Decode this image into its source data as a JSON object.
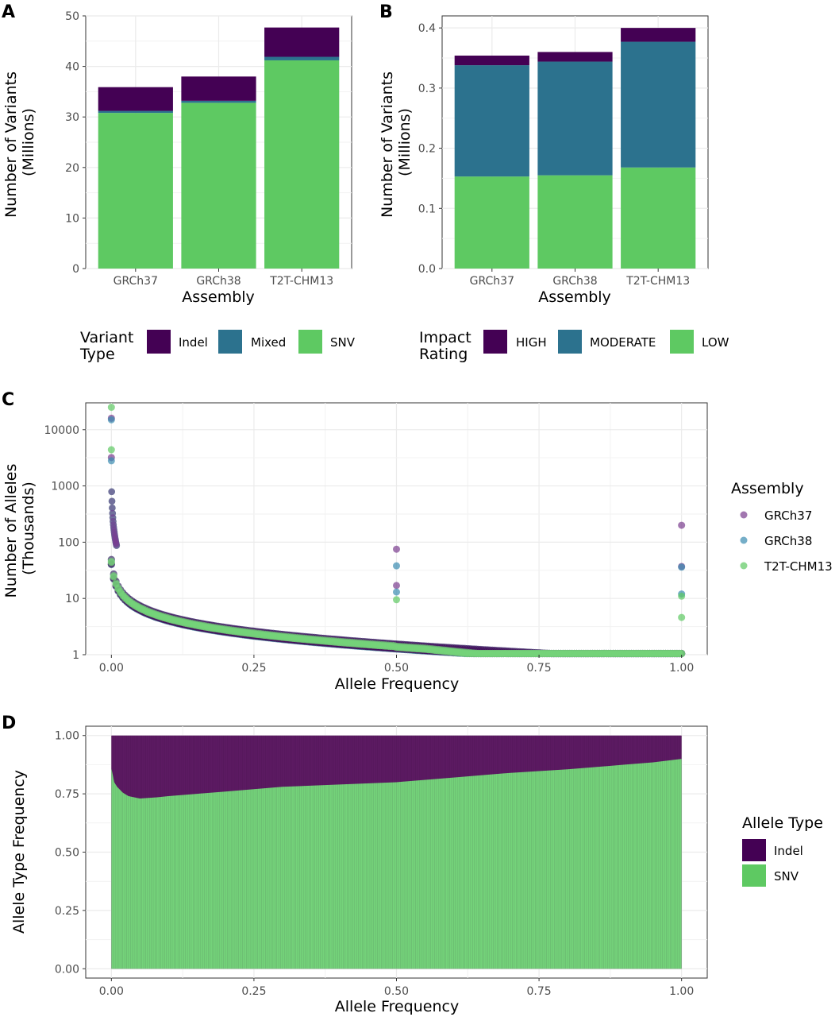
{
  "chart_data": [
    {
      "panel": "A",
      "type": "bar",
      "stacked": true,
      "categories": [
        "GRCh37",
        "GRCh38",
        "T2T-CHM13"
      ],
      "series": [
        {
          "name": "SNV",
          "values": [
            30.8,
            32.8,
            41.2
          ],
          "color": "#5ec962"
        },
        {
          "name": "Mixed",
          "values": [
            0.4,
            0.4,
            0.7
          ],
          "color": "#2c728e"
        },
        {
          "name": "Indel",
          "values": [
            4.7,
            4.8,
            5.8
          ],
          "color": "#440154"
        }
      ],
      "xlabel": "Assembly",
      "ylabel": [
        "Number of Variants",
        "(Millions)"
      ],
      "ylim": [
        0,
        50
      ],
      "yticks": [
        "0",
        "10",
        "20",
        "30",
        "40",
        "50"
      ],
      "legend": {
        "title": [
          "Variant",
          "Type"
        ],
        "entries": [
          "Indel",
          "Mixed",
          "SNV"
        ],
        "placement": "bottom"
      }
    },
    {
      "panel": "B",
      "type": "bar",
      "stacked": true,
      "categories": [
        "GRCh37",
        "GRCh38",
        "T2T-CHM13"
      ],
      "series": [
        {
          "name": "LOW",
          "values": [
            0.153,
            0.155,
            0.168
          ],
          "color": "#5ec962"
        },
        {
          "name": "MODERATE",
          "values": [
            0.185,
            0.189,
            0.209
          ],
          "color": "#2c728e"
        },
        {
          "name": "HIGH",
          "values": [
            0.016,
            0.016,
            0.023
          ],
          "color": "#440154"
        }
      ],
      "xlabel": "Assembly",
      "ylabel": [
        "Number of Variants",
        "(Millions)"
      ],
      "ylim": [
        0,
        0.42
      ],
      "yticks": [
        "0.0",
        "0.1",
        "0.2",
        "0.3",
        "0.4"
      ],
      "legend": {
        "title": [
          "Impact",
          "Rating"
        ],
        "entries": [
          "HIGH",
          "MODERATE",
          "LOW"
        ],
        "placement": "bottom"
      }
    },
    {
      "panel": "C",
      "type": "scatter",
      "xscale": "linear",
      "yscale": "log10",
      "xlim": [
        -0.045,
        1.045
      ],
      "ylim": [
        1,
        30000
      ],
      "xticks": [
        "0.00",
        "0.25",
        "0.50",
        "0.75",
        "1.00"
      ],
      "yticks": [
        "1",
        "10",
        "100",
        "1000",
        "10000"
      ],
      "xlabel": "Allele Frequency",
      "ylabel": [
        "Number of Alleles",
        "(Thousands)"
      ],
      "series": [
        {
          "name": "GRCh37",
          "color": "#7a3d8f",
          "peaks": [
            [
              0.0,
              16000
            ],
            [
              0.0,
              3200
            ],
            [
              0.5,
              75
            ],
            [
              0.5,
              17
            ],
            [
              1.0,
              200
            ],
            [
              1.0,
              37
            ]
          ]
        },
        {
          "name": "GRCh38",
          "color": "#3b8bb0",
          "peaks": [
            [
              0.0,
              15000
            ],
            [
              0.0,
              2800
            ],
            [
              0.5,
              38
            ],
            [
              0.5,
              13
            ],
            [
              1.0,
              36
            ],
            [
              1.0,
              12
            ]
          ]
        },
        {
          "name": "T2T-CHM13",
          "color": "#5ec962",
          "peaks": [
            [
              0.0,
              25000
            ],
            [
              0.0,
              4400
            ],
            [
              0.5,
              9.5
            ],
            [
              1.0,
              11
            ],
            [
              1.0,
              4.6
            ]
          ]
        }
      ],
      "legend": {
        "title": "Assembly",
        "entries": [
          "GRCh37",
          "GRCh38",
          "T2T-CHM13"
        ],
        "placement": "right"
      }
    },
    {
      "panel": "D",
      "type": "area",
      "stacked": true,
      "xlim": [
        -0.045,
        1.045
      ],
      "ylim": [
        -0.04,
        1.04
      ],
      "xticks": [
        "0.00",
        "0.25",
        "0.50",
        "0.75",
        "1.00"
      ],
      "yticks": [
        "0.00",
        "0.25",
        "0.50",
        "0.75",
        "1.00"
      ],
      "xlabel": "Allele Frequency",
      "ylabel": "Allele Type Frequency",
      "x": [
        0.0,
        0.005,
        0.01,
        0.02,
        0.03,
        0.05,
        0.08,
        0.1,
        0.15,
        0.2,
        0.25,
        0.3,
        0.4,
        0.5,
        0.6,
        0.7,
        0.8,
        0.9,
        0.95,
        1.0
      ],
      "series": [
        {
          "name": "SNV",
          "color": "#74d37a",
          "values": [
            0.86,
            0.8,
            0.78,
            0.755,
            0.74,
            0.73,
            0.735,
            0.74,
            0.75,
            0.76,
            0.77,
            0.78,
            0.79,
            0.8,
            0.82,
            0.84,
            0.855,
            0.875,
            0.885,
            0.9
          ]
        },
        {
          "name": "Indel",
          "color": "#5c1a62",
          "values": [
            0.14,
            0.2,
            0.22,
            0.245,
            0.26,
            0.27,
            0.265,
            0.26,
            0.25,
            0.24,
            0.23,
            0.22,
            0.21,
            0.2,
            0.18,
            0.16,
            0.145,
            0.125,
            0.115,
            0.1
          ]
        }
      ],
      "legend": {
        "title": "Allele Type",
        "entries": [
          "Indel",
          "SNV"
        ],
        "colors": [
          "#440154",
          "#5ec962"
        ],
        "placement": "right"
      }
    }
  ]
}
